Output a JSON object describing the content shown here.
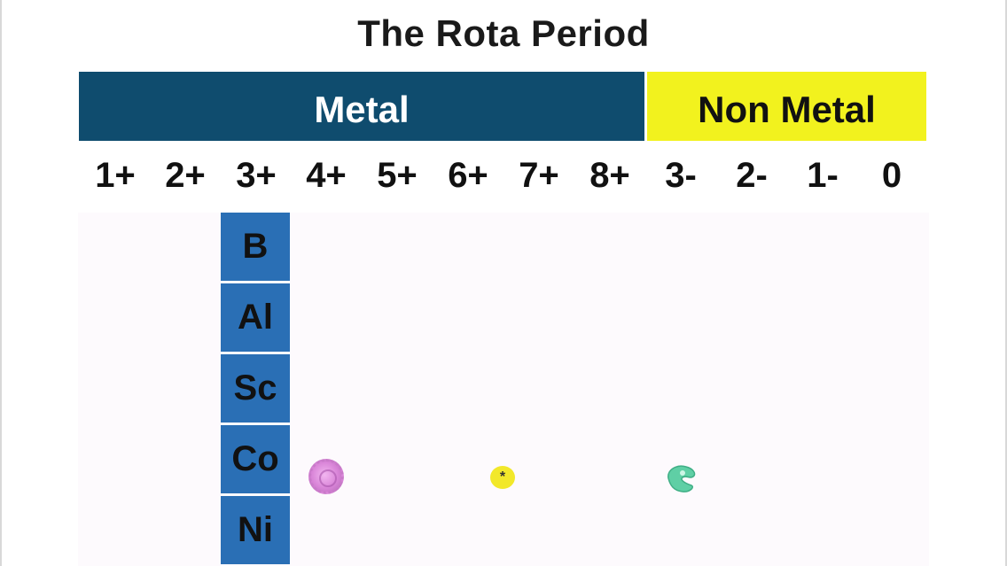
{
  "title": "The Rota Period",
  "bands": {
    "metal": "Metal",
    "non_metal": "Non Metal"
  },
  "charges": [
    "1+",
    "2+",
    "3+",
    "4+",
    "5+",
    "6+",
    "7+",
    "8+",
    "3-",
    "2-",
    "1-",
    "0"
  ],
  "elements": [
    "B",
    "Al",
    "Sc",
    "Co",
    "Ni"
  ],
  "sprites": {
    "yellow_dot_mark": "*"
  },
  "colors": {
    "metal_band": "#0f4c6e",
    "non_metal_band": "#f2f21e",
    "element_cell": "#2a6fb5"
  }
}
